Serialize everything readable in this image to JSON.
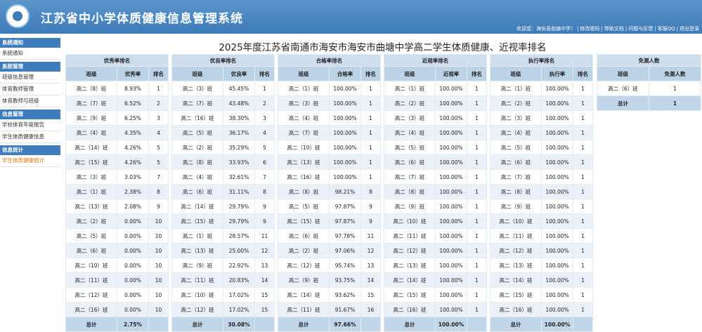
{
  "header": {
    "title": "江苏省中小学体质健康信息管理系统",
    "links": [
      "欢迎您：海安县曲塘中学！",
      "修改密码",
      "帮助文档",
      "问题与反馈",
      "客服QQ",
      "退出登录"
    ]
  },
  "sidebar": [
    {
      "title": "系统通知",
      "items": [
        "系统通知"
      ]
    },
    {
      "title": "系统管理",
      "items": [
        "班级信息管理",
        "体育教师管理",
        "体育教师与班级"
      ]
    },
    {
      "title": "信息管理",
      "items": [
        "学校体育年度报告",
        "学生体质健康信息"
      ]
    },
    {
      "title": "信息统计",
      "items": [
        "学生体质健康统计"
      ]
    }
  ],
  "page_title": "2025年度江苏省南通市海安市海安市曲塘中学高二学生体质健康、近视率排名",
  "tables": [
    {
      "title": "优秀率排名",
      "headers": [
        "班级",
        "优秀率",
        "排名"
      ],
      "rows": [
        [
          "高二（8）班",
          "8.93%",
          1
        ],
        [
          "高二（7）班",
          "6.52%",
          2
        ],
        [
          "高二（9）班",
          "6.25%",
          3
        ],
        [
          "高二（4）班",
          "4.35%",
          4
        ],
        [
          "高二（14）班",
          "4.26%",
          5
        ],
        [
          "高二（15）班",
          "4.26%",
          5
        ],
        [
          "高二（3）班",
          "3.03%",
          7
        ],
        [
          "高二（1）班",
          "2.38%",
          8
        ],
        [
          "高二（13）班",
          "2.08%",
          9
        ],
        [
          "高二（2）班",
          "0.00%",
          10
        ],
        [
          "高二（5）班",
          "0.00%",
          10
        ],
        [
          "高二（6）班",
          "0.00%",
          10
        ],
        [
          "高二（10）班",
          "0.00%",
          10
        ],
        [
          "高二（11）班",
          "0.00%",
          10
        ],
        [
          "高二（12）班",
          "0.00%",
          10
        ],
        [
          "高二（16）班",
          "0.00%",
          10
        ]
      ],
      "total": [
        "总计",
        "2.75%"
      ]
    },
    {
      "title": "优良率排名",
      "headers": [
        "班级",
        "优良率",
        "排名"
      ],
      "rows": [
        [
          "高二（3）班",
          "45.45%",
          1
        ],
        [
          "高二（7）班",
          "43.48%",
          2
        ],
        [
          "高二（16）班",
          "38.30%",
          3
        ],
        [
          "高二（5）班",
          "36.17%",
          4
        ],
        [
          "高二（2）班",
          "35.29%",
          5
        ],
        [
          "高二（8）班",
          "33.93%",
          6
        ],
        [
          "高二（4）班",
          "32.61%",
          7
        ],
        [
          "高二（6）班",
          "31.11%",
          8
        ],
        [
          "高二（14）班",
          "29.79%",
          9
        ],
        [
          "高二（15）班",
          "29.79%",
          9
        ],
        [
          "高二（1）班",
          "28.57%",
          11
        ],
        [
          "高二（13）班",
          "25.00%",
          12
        ],
        [
          "高二（9）班",
          "22.92%",
          13
        ],
        [
          "高二（11）班",
          "20.83%",
          14
        ],
        [
          "高二（10）班",
          "17.02%",
          15
        ],
        [
          "高二（12）班",
          "17.02%",
          15
        ]
      ],
      "total": [
        "总计",
        "30.08%"
      ]
    },
    {
      "title": "合格率排名",
      "headers": [
        "班级",
        "合格率",
        "排名"
      ],
      "rows": [
        [
          "高二（1）班",
          "100.00%",
          1
        ],
        [
          "高二（3）班",
          "100.00%",
          1
        ],
        [
          "高二（4）班",
          "100.00%",
          1
        ],
        [
          "高二（7）班",
          "100.00%",
          1
        ],
        [
          "高二（10）班",
          "100.00%",
          1
        ],
        [
          "高二（13）班",
          "100.00%",
          1
        ],
        [
          "高二（16）班",
          "100.00%",
          1
        ],
        [
          "高二（8）班",
          "98.21%",
          8
        ],
        [
          "高二（5）班",
          "97.87%",
          9
        ],
        [
          "高二（15）班",
          "97.87%",
          9
        ],
        [
          "高二（6）班",
          "97.78%",
          11
        ],
        [
          "高二（2）班",
          "97.06%",
          12
        ],
        [
          "高二（12）班",
          "95.74%",
          13
        ],
        [
          "高二（9）班",
          "93.75%",
          14
        ],
        [
          "高二（14）班",
          "93.62%",
          15
        ],
        [
          "高二（11）班",
          "91.67%",
          16
        ]
      ],
      "total": [
        "总计",
        "97.66%"
      ]
    },
    {
      "title": "近视率排名",
      "headers": [
        "班级",
        "近视率",
        "排名"
      ],
      "rows": [
        [
          "高二（1）班",
          "100.00%",
          1
        ],
        [
          "高二（2）班",
          "100.00%",
          1
        ],
        [
          "高二（3）班",
          "100.00%",
          1
        ],
        [
          "高二（4）班",
          "100.00%",
          1
        ],
        [
          "高二（5）班",
          "100.00%",
          1
        ],
        [
          "高二（6）班",
          "100.00%",
          1
        ],
        [
          "高二（7）班",
          "100.00%",
          1
        ],
        [
          "高二（8）班",
          "100.00%",
          1
        ],
        [
          "高二（9）班",
          "100.00%",
          1
        ],
        [
          "高二（10）班",
          "100.00%",
          1
        ],
        [
          "高二（11）班",
          "100.00%",
          1
        ],
        [
          "高二（12）班",
          "100.00%",
          1
        ],
        [
          "高二（13）班",
          "100.00%",
          1
        ],
        [
          "高二（14）班",
          "100.00%",
          1
        ],
        [
          "高二（15）班",
          "100.00%",
          1
        ],
        [
          "高二（16）班",
          "100.00%",
          1
        ]
      ],
      "total": [
        "总计",
        "100.00%"
      ]
    },
    {
      "title": "执行率排名",
      "headers": [
        "班级",
        "执行率",
        "排名"
      ],
      "rows": [
        [
          "高二（1）班",
          "100.00%",
          1
        ],
        [
          "高二（2）班",
          "100.00%",
          1
        ],
        [
          "高二（3）班",
          "100.00%",
          1
        ],
        [
          "高二（4）班",
          "100.00%",
          1
        ],
        [
          "高二（5）班",
          "100.00%",
          1
        ],
        [
          "高二（6）班",
          "100.00%",
          1
        ],
        [
          "高二（7）班",
          "100.00%",
          1
        ],
        [
          "高二（8）班",
          "100.00%",
          1
        ],
        [
          "高二（9）班",
          "100.00%",
          1
        ],
        [
          "高二（10）班",
          "100.00%",
          1
        ],
        [
          "高二（11）班",
          "100.00%",
          1
        ],
        [
          "高二（12）班",
          "100.00%",
          1
        ],
        [
          "高二（13）班",
          "100.00%",
          1
        ],
        [
          "高二（14）班",
          "100.00%",
          1
        ],
        [
          "高二（15）班",
          "100.00%",
          1
        ],
        [
          "高二（16）班",
          "100.00%",
          1
        ]
      ],
      "total": [
        "总计",
        "100.00%"
      ]
    },
    {
      "title": "免测人数",
      "headers": [
        "班级",
        "免测人数"
      ],
      "rows": [
        [
          "高二（6）班",
          1
        ]
      ],
      "total": [
        "总计",
        1
      ]
    }
  ]
}
